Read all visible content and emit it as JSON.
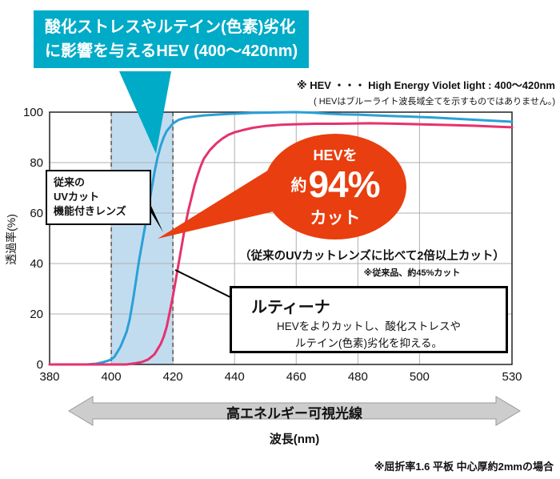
{
  "callout_hev": {
    "line1": "酸化ストレスやルテイン(色素)劣化",
    "line2": "に影響を与えるHEV (400〜420nm)"
  },
  "note_top": {
    "line1": "※ HEV ・・・ High Energy Violet light : 400〜420nm",
    "line2": "( HEVはブルーライト波長域全てを示すものではありません。)"
  },
  "labels": {
    "conventional_lens": [
      "従来の",
      "UVカット",
      "機能付きレンズ"
    ],
    "bubble": {
      "top": "HEVを",
      "approx": "約",
      "percent": "94%",
      "bottom": "カット"
    },
    "comparison": "（従来のUVカットレンズに比べて2倍以上カット）",
    "comparison_note": "※従来品、約45%カット",
    "lutina_title": "ルティーナ",
    "lutina_desc1": "HEVをよりカットし、酸化ストレスや",
    "lutina_desc2": "ルテイン(色素)劣化を抑える。",
    "arrow_label": "高エネルギー可視光線",
    "xaxis_label": "波長(nm)",
    "yaxis_label": "透過率(%)",
    "footnote": "※屈折率1.6 平板 中心厚約2mmの場合"
  },
  "colors": {
    "teal": "#00abc8",
    "red": "#e93e0f",
    "band": "#c2dcef",
    "grid": "#b0b0b0",
    "border": "#222222",
    "dash": "#555555",
    "arrow_fill": "#cdcdcd",
    "arrow_edge": "#9a9a9a"
  },
  "chart_data": {
    "type": "line",
    "title": "レンズ透過率曲線",
    "xlabel": "波長(nm)",
    "ylabel": "透過率(%)",
    "xlim": [
      380,
      530
    ],
    "ylim": [
      0,
      100
    ],
    "x_ticks": [
      380,
      400,
      420,
      440,
      460,
      480,
      500,
      530
    ],
    "y_ticks": [
      0,
      20,
      40,
      60,
      80,
      100
    ],
    "grid": true,
    "hev_band": [
      400,
      420
    ],
    "series": [
      {
        "name": "従来のUVカット機能付きレンズ",
        "color": "#2aa0d8",
        "points": [
          [
            380,
            0
          ],
          [
            392,
            0
          ],
          [
            395,
            0.3
          ],
          [
            397,
            0.8
          ],
          [
            399,
            1.5
          ],
          [
            400,
            2
          ],
          [
            401,
            3
          ],
          [
            402,
            5
          ],
          [
            403,
            7
          ],
          [
            404,
            10
          ],
          [
            405,
            13
          ],
          [
            406,
            18
          ],
          [
            407,
            25
          ],
          [
            408,
            33
          ],
          [
            409,
            41
          ],
          [
            410,
            48
          ],
          [
            411,
            55
          ],
          [
            412,
            62
          ],
          [
            413,
            69
          ],
          [
            414,
            76
          ],
          [
            415,
            82
          ],
          [
            416,
            86.5
          ],
          [
            417,
            90
          ],
          [
            418,
            92.5
          ],
          [
            419,
            94
          ],
          [
            420,
            95.5
          ],
          [
            421,
            96.3
          ],
          [
            422,
            97
          ],
          [
            424,
            97.7
          ],
          [
            426,
            98.1
          ],
          [
            428,
            98.4
          ],
          [
            430,
            98.7
          ],
          [
            434,
            99
          ],
          [
            438,
            99.3
          ],
          [
            442,
            99.5
          ],
          [
            446,
            99.7
          ],
          [
            450,
            99.8
          ],
          [
            455,
            99.9
          ],
          [
            460,
            100
          ],
          [
            465,
            99.8
          ],
          [
            470,
            99.4
          ],
          [
            475,
            99.1
          ],
          [
            480,
            99
          ],
          [
            486,
            98.7
          ],
          [
            492,
            98.4
          ],
          [
            498,
            98.2
          ],
          [
            504,
            97.9
          ],
          [
            510,
            97.5
          ],
          [
            516,
            97.1
          ],
          [
            522,
            96.7
          ],
          [
            530,
            96.2
          ]
        ]
      },
      {
        "name": "ルティーナ",
        "color": "#e5326e",
        "points": [
          [
            380,
            0
          ],
          [
            395,
            0
          ],
          [
            405,
            0
          ],
          [
            408,
            0.5
          ],
          [
            410,
            1
          ],
          [
            412,
            2
          ],
          [
            414,
            4
          ],
          [
            415,
            6
          ],
          [
            416,
            8
          ],
          [
            417,
            11
          ],
          [
            418,
            15
          ],
          [
            419,
            21
          ],
          [
            420,
            27
          ],
          [
            421,
            34
          ],
          [
            422,
            41
          ],
          [
            423,
            48
          ],
          [
            424,
            55
          ],
          [
            425,
            61
          ],
          [
            426,
            66
          ],
          [
            427,
            71
          ],
          [
            428,
            75
          ],
          [
            429,
            78.5
          ],
          [
            430,
            81.5
          ],
          [
            432,
            85
          ],
          [
            434,
            87.5
          ],
          [
            436,
            89.5
          ],
          [
            438,
            91
          ],
          [
            440,
            92
          ],
          [
            443,
            93
          ],
          [
            446,
            93.8
          ],
          [
            450,
            94.5
          ],
          [
            455,
            95
          ],
          [
            460,
            95.2
          ],
          [
            466,
            95.4
          ],
          [
            472,
            95.4
          ],
          [
            478,
            95.5
          ],
          [
            484,
            95.6
          ],
          [
            490,
            95.5
          ],
          [
            496,
            95.3
          ],
          [
            502,
            95.1
          ],
          [
            510,
            94.9
          ],
          [
            518,
            94.6
          ],
          [
            524,
            94.3
          ],
          [
            530,
            94
          ]
        ]
      }
    ]
  }
}
